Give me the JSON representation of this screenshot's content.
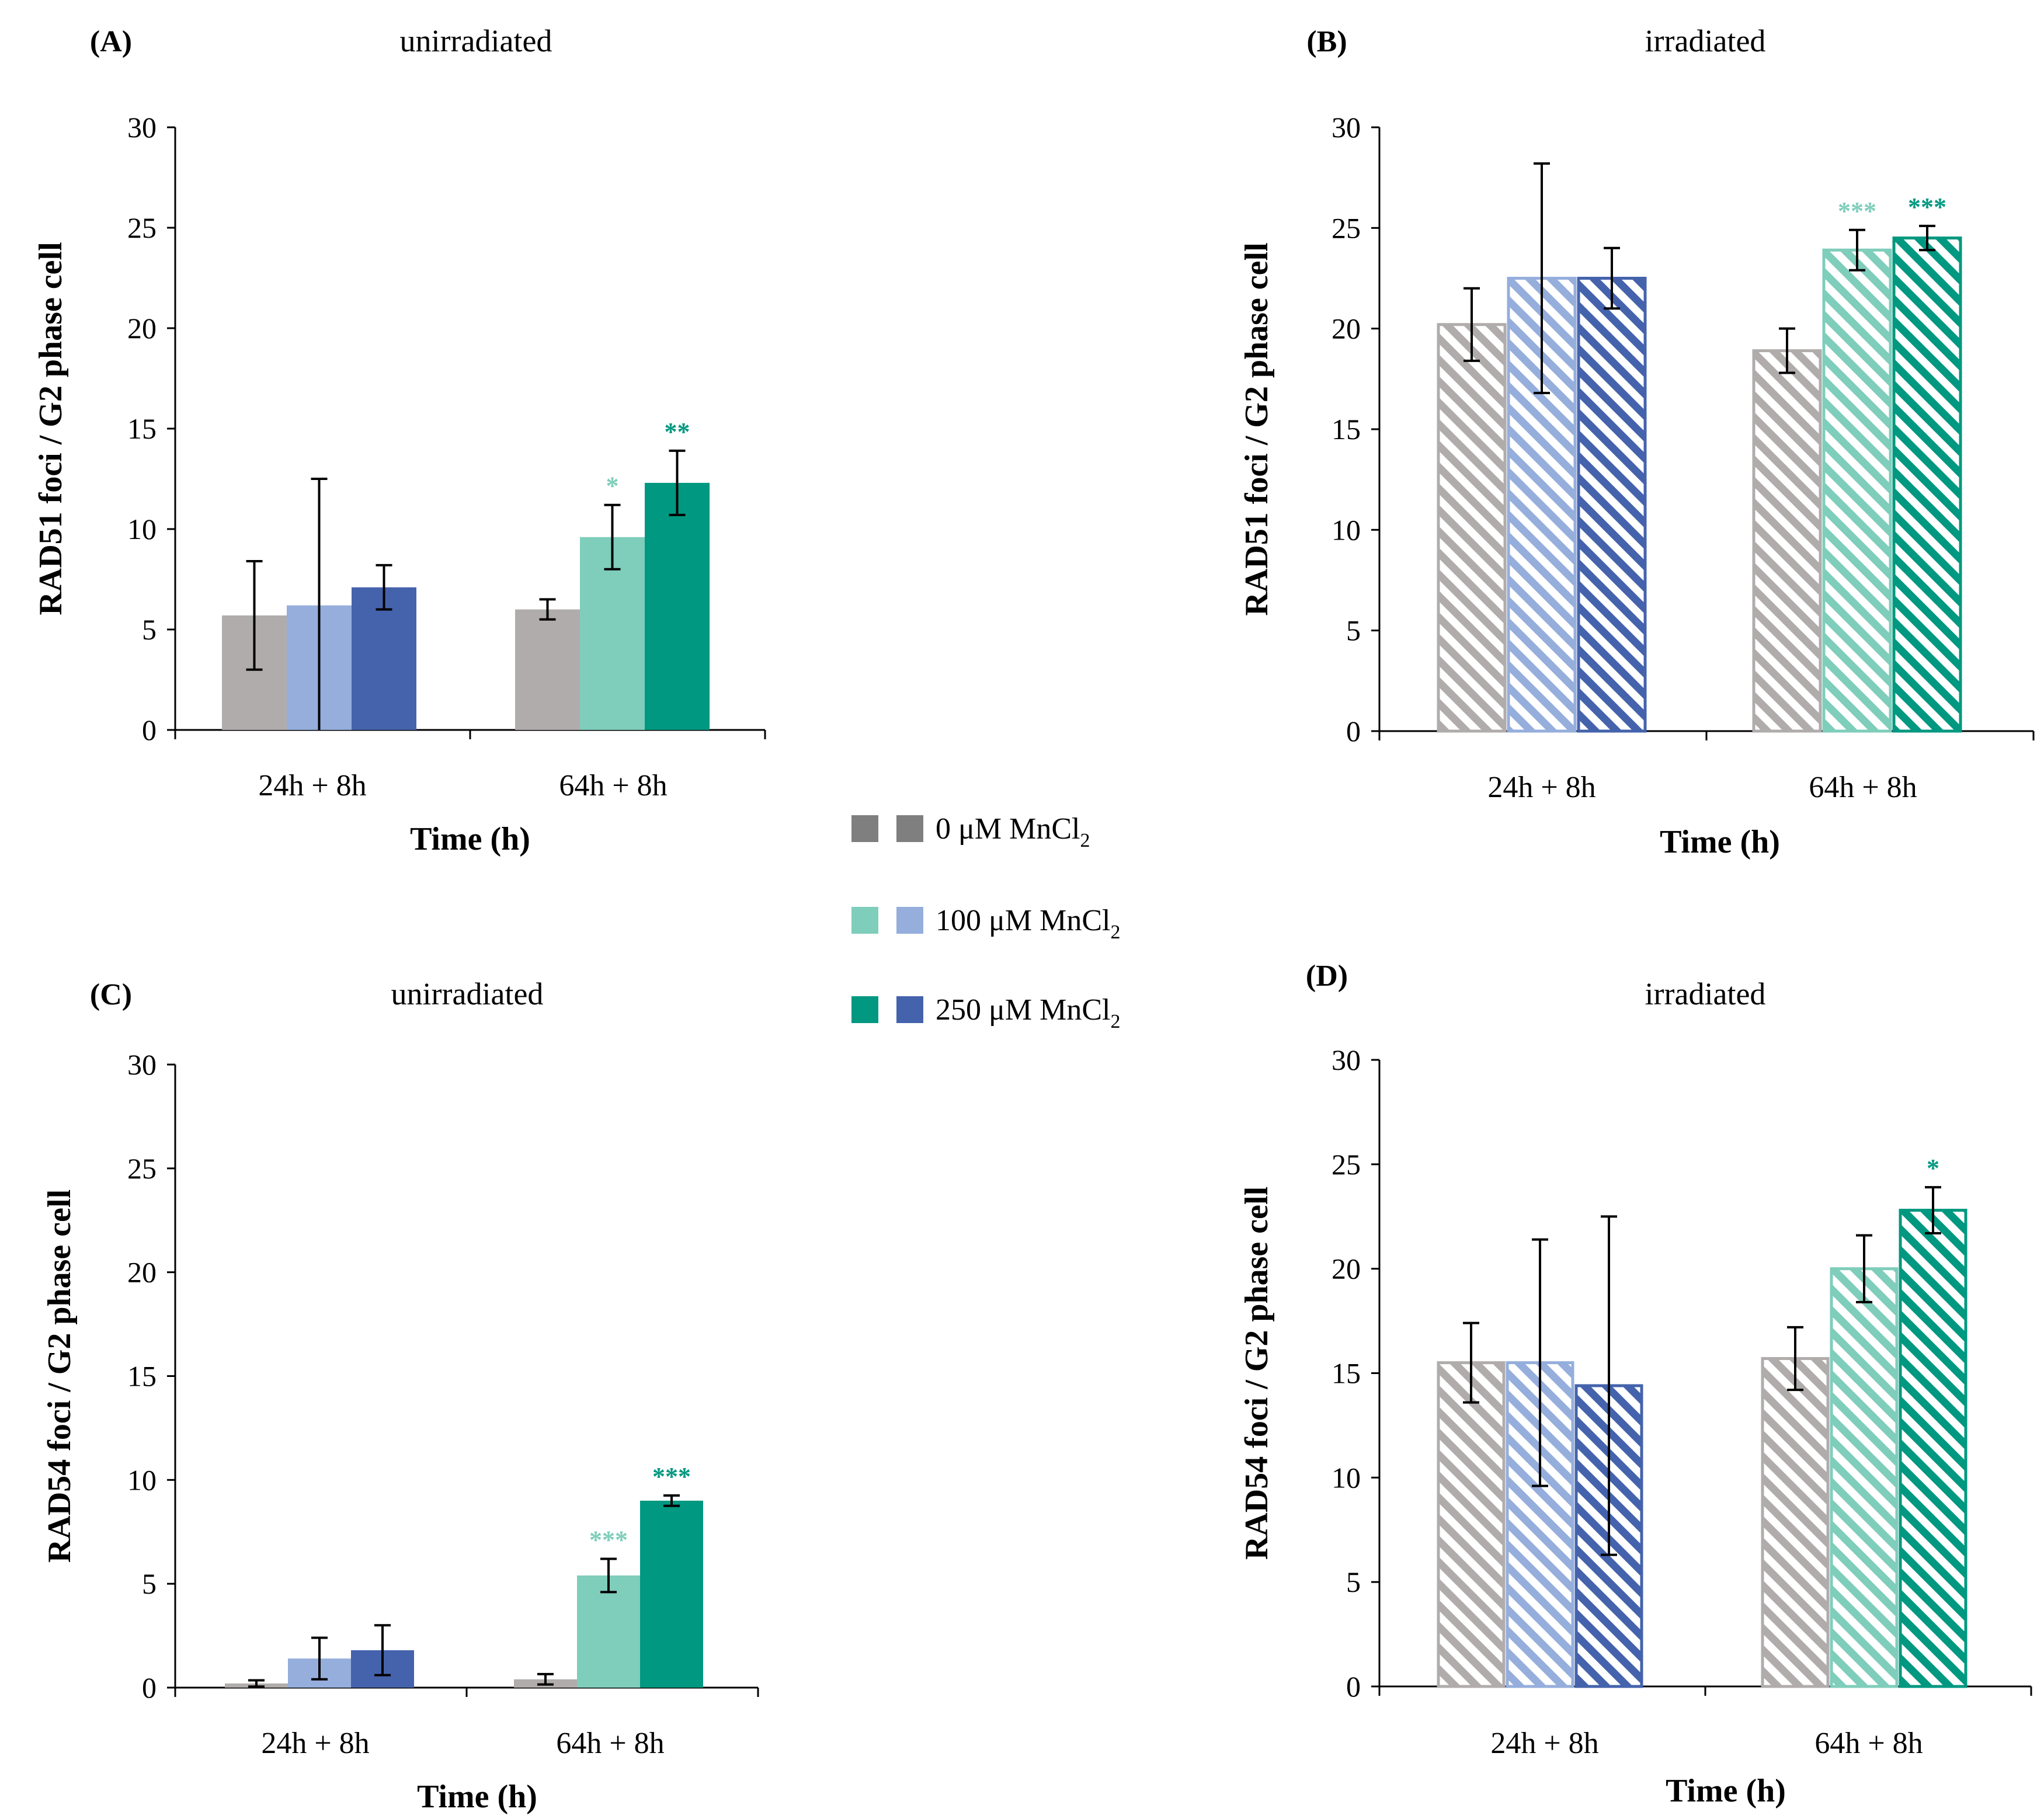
{
  "legend": {
    "items": [
      {
        "label": "0 μM MnCl",
        "sub": "2",
        "colors": [
          "#7f7f7f",
          "#7f7f7f"
        ]
      },
      {
        "label": "100 μM MnCl",
        "sub": "2",
        "colors": [
          "#7fcdbb",
          "#95aedc"
        ]
      },
      {
        "label": "250 μM MnCl",
        "sub": "2",
        "colors": [
          "#009880",
          "#4563ac"
        ]
      }
    ]
  },
  "colors": {
    "grey": "#b1acac",
    "lightblue": "#95aedc",
    "darkblue": "#4563ac",
    "lightteal": "#7fcdbb",
    "darkteal": "#009880",
    "sig_light": "#7fcdbb",
    "sig_dark": "#009880"
  },
  "chart_data": [
    {
      "type": "bar",
      "panel": "(A)",
      "title": "unirradiated",
      "xlabel": "Time (h)",
      "ylabel": "RAD51 foci / G2 phase cell",
      "ylim": [
        0,
        30
      ],
      "yticks": [
        0,
        5,
        10,
        15,
        20,
        25,
        30
      ],
      "pattern": "solid",
      "categories": [
        "24h + 8h",
        "64h + 8h"
      ],
      "bars": [
        [
          {
            "value": 5.7,
            "err": 2.7,
            "color": "#b1acac",
            "sig": ""
          },
          {
            "value": 6.2,
            "err": 6.3,
            "color": "#95aedc",
            "sig": ""
          },
          {
            "value": 7.1,
            "err": 1.1,
            "color": "#4563ac",
            "sig": ""
          }
        ],
        [
          {
            "value": 6.0,
            "err": 0.5,
            "color": "#b1acac",
            "sig": ""
          },
          {
            "value": 9.6,
            "err": 1.6,
            "color": "#7fcdbb",
            "sig": "*"
          },
          {
            "value": 12.3,
            "err": 1.6,
            "color": "#009880",
            "sig": "**"
          }
        ]
      ]
    },
    {
      "type": "bar",
      "panel": "(B)",
      "title": "irradiated",
      "xlabel": "Time (h)",
      "ylabel": "RAD51 foci / G2 phase cell",
      "ylim": [
        0,
        30
      ],
      "yticks": [
        0,
        5,
        10,
        15,
        20,
        25,
        30
      ],
      "pattern": "hatched",
      "categories": [
        "24h + 8h",
        "64h + 8h"
      ],
      "bars": [
        [
          {
            "value": 20.2,
            "err": 1.8,
            "color": "#b1acac",
            "sig": ""
          },
          {
            "value": 22.5,
            "err": 5.7,
            "color": "#95aedc",
            "sig": ""
          },
          {
            "value": 22.5,
            "err": 1.5,
            "color": "#4563ac",
            "sig": ""
          }
        ],
        [
          {
            "value": 18.9,
            "err": 1.1,
            "color": "#b1acac",
            "sig": ""
          },
          {
            "value": 23.9,
            "err": 1.0,
            "color": "#7fcdbb",
            "sig": "***"
          },
          {
            "value": 24.5,
            "err": 0.6,
            "color": "#009880",
            "sig": "***"
          }
        ]
      ]
    },
    {
      "type": "bar",
      "panel": "(C)",
      "title": "unirradiated",
      "xlabel": "Time (h)",
      "ylabel": "RAD54 foci / G2 phase cell",
      "ylim": [
        0,
        30
      ],
      "yticks": [
        0,
        5,
        10,
        15,
        20,
        25,
        30
      ],
      "pattern": "solid",
      "categories": [
        "24h + 8h",
        "64h + 8h"
      ],
      "bars": [
        [
          {
            "value": 0.2,
            "err": 0.15,
            "color": "#b1acac",
            "sig": ""
          },
          {
            "value": 1.4,
            "err": 1.0,
            "color": "#95aedc",
            "sig": ""
          },
          {
            "value": 1.8,
            "err": 1.2,
            "color": "#4563ac",
            "sig": ""
          }
        ],
        [
          {
            "value": 0.4,
            "err": 0.25,
            "color": "#b1acac",
            "sig": ""
          },
          {
            "value": 5.4,
            "err": 0.8,
            "color": "#7fcdbb",
            "sig": "***"
          },
          {
            "value": 9.0,
            "err": 0.25,
            "color": "#009880",
            "sig": "***"
          }
        ]
      ]
    },
    {
      "type": "bar",
      "panel": "(D)",
      "title": "irradiated",
      "xlabel": "Time (h)",
      "ylabel": "RAD54 foci / G2 phase cell",
      "ylim": [
        0,
        30
      ],
      "yticks": [
        0,
        5,
        10,
        15,
        20,
        25,
        30
      ],
      "pattern": "hatched",
      "categories": [
        "24h + 8h",
        "64h + 8h"
      ],
      "bars": [
        [
          {
            "value": 15.5,
            "err": 1.9,
            "color": "#b1acac",
            "sig": ""
          },
          {
            "value": 15.5,
            "err": 5.9,
            "color": "#95aedc",
            "sig": ""
          },
          {
            "value": 14.4,
            "err": 8.1,
            "color": "#4563ac",
            "sig": ""
          }
        ],
        [
          {
            "value": 15.7,
            "err": 1.5,
            "color": "#b1acac",
            "sig": ""
          },
          {
            "value": 20.0,
            "err": 1.6,
            "color": "#7fcdbb",
            "sig": ""
          },
          {
            "value": 22.8,
            "err": 1.1,
            "color": "#009880",
            "sig": "*"
          }
        ]
      ]
    }
  ]
}
